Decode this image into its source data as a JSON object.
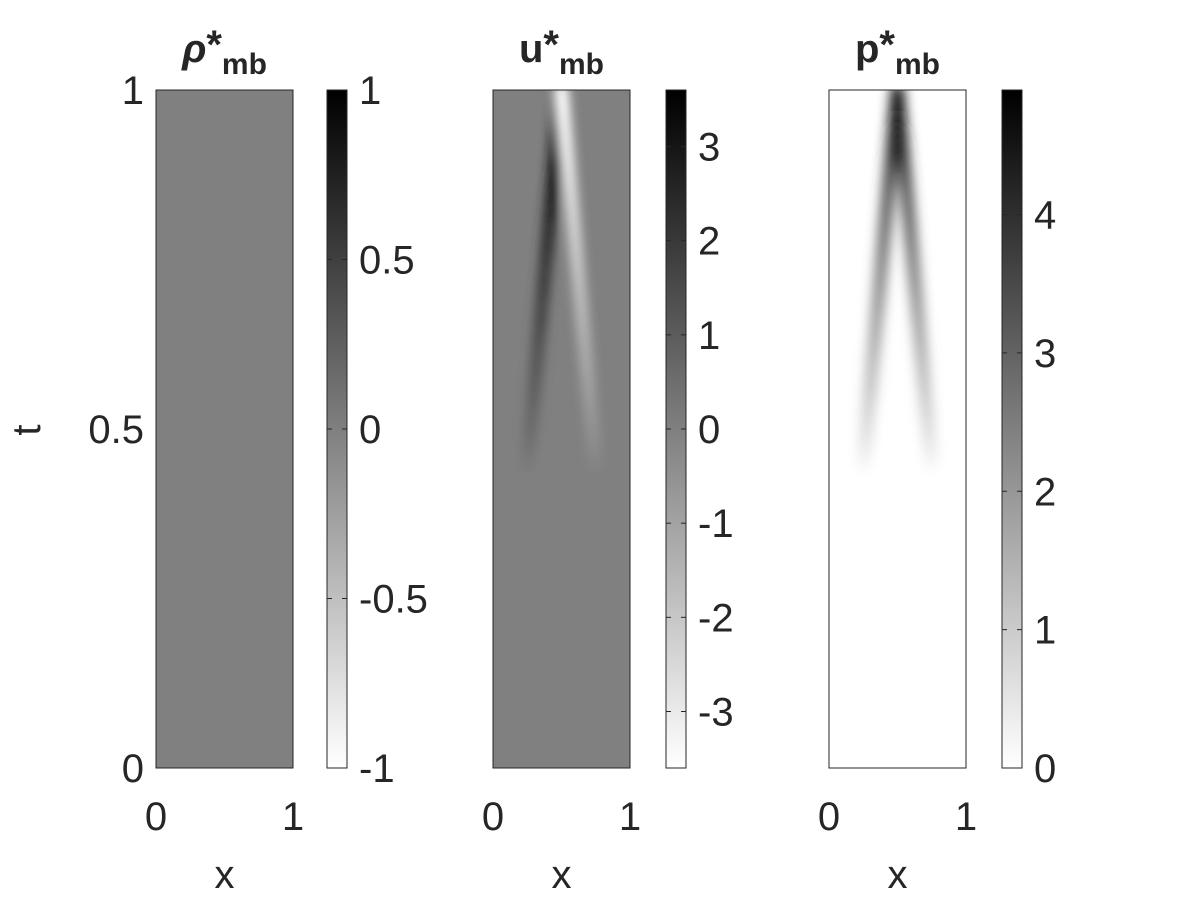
{
  "chart_data": [
    {
      "type": "heatmap",
      "title": {
        "symbol": "ρ",
        "superscript": "*",
        "subscript": "mb"
      },
      "xlabel": "x",
      "ylabel": "t",
      "xlim": [
        0,
        1
      ],
      "ylim": [
        0,
        1
      ],
      "x_ticks": [
        "0",
        "1"
      ],
      "y_ticks": [
        "0",
        "0.5",
        "1"
      ],
      "colormap": "gray-reversed",
      "colorbar": {
        "limits": [
          -1,
          1
        ],
        "ticks": [
          -1,
          -0.5,
          0,
          0.5,
          1
        ],
        "tick_labels": [
          "-1",
          "-0.5",
          "0",
          "0.5",
          "1"
        ]
      },
      "field": {
        "kind": "uniform",
        "value": 0
      }
    },
    {
      "type": "heatmap",
      "title": {
        "symbol": "u",
        "superscript": "*",
        "subscript": "mb"
      },
      "xlabel": "x",
      "xlim": [
        0,
        1
      ],
      "ylim": [
        0,
        1
      ],
      "x_ticks": [
        "0",
        "1"
      ],
      "colormap": "gray-reversed",
      "colorbar": {
        "limits": [
          -3.6,
          3.6
        ],
        "ticks": [
          -3,
          -2,
          -1,
          0,
          1,
          2,
          3
        ],
        "tick_labels": [
          "-3",
          "-2",
          "-1",
          "0",
          "1",
          "2",
          "3"
        ]
      },
      "field": {
        "kind": "two-waves",
        "peak_position": [
          0.5,
          1.0
        ],
        "left_wave_sign": 1,
        "right_wave_sign": -1,
        "peak_value": 3.6,
        "onset_t": 0.45,
        "wave_speed": 0.9
      }
    },
    {
      "type": "heatmap",
      "title": {
        "symbol": "p",
        "superscript": "*",
        "subscript": "mb"
      },
      "xlabel": "x",
      "xlim": [
        0,
        1
      ],
      "ylim": [
        0,
        1
      ],
      "x_ticks": [
        "0",
        "1"
      ],
      "colormap": "gray-reversed",
      "colorbar": {
        "limits": [
          0,
          4.9
        ],
        "ticks": [
          0,
          1,
          2,
          3,
          4
        ],
        "tick_labels": [
          "0",
          "1",
          "2",
          "3",
          "4"
        ]
      },
      "field": {
        "kind": "two-waves",
        "peak_position": [
          0.5,
          1.0
        ],
        "left_wave_sign": 1,
        "right_wave_sign": 1,
        "peak_value": 4.9,
        "onset_t": 0.45,
        "wave_speed": 0.9
      }
    }
  ]
}
